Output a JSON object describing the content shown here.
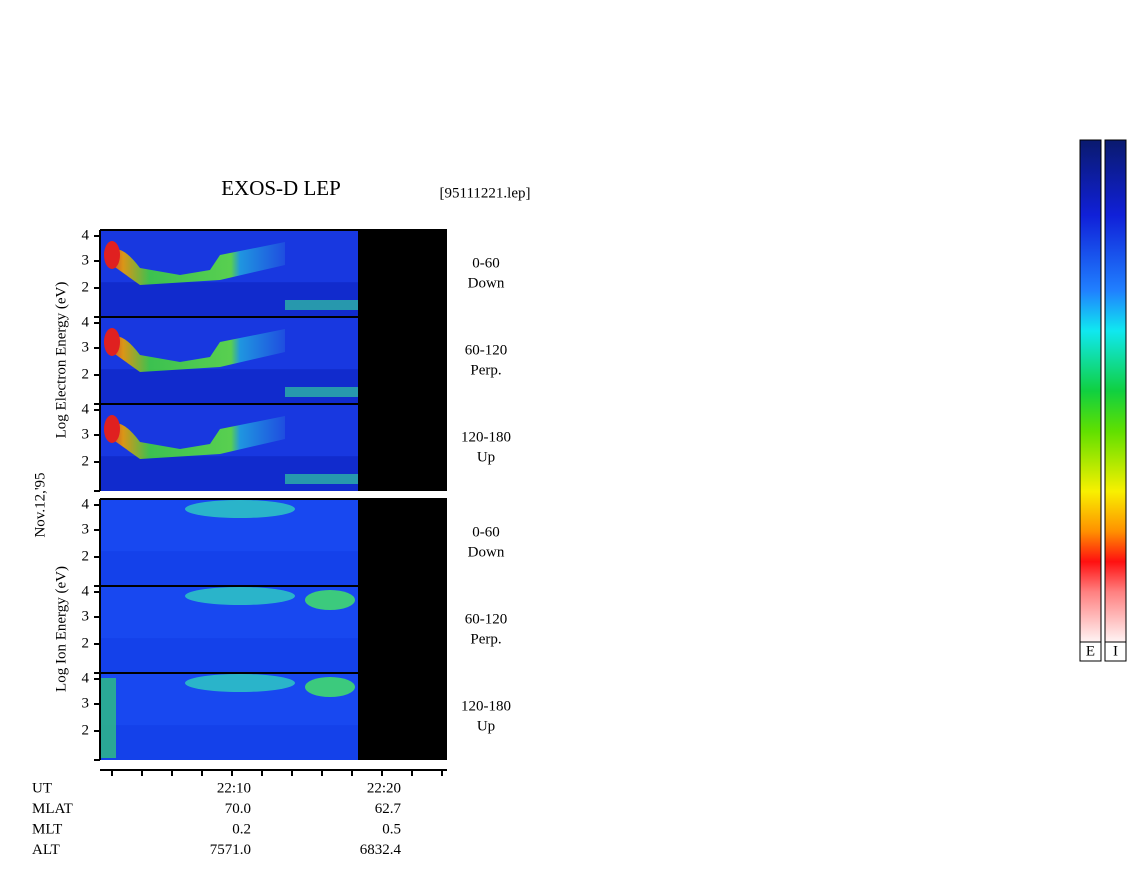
{
  "header": {
    "title": "EXOS-D LEP",
    "file": "[95111221.lep]"
  },
  "date": "Nov.12,'95",
  "yticks": [
    "2",
    "3",
    "4"
  ],
  "groups": [
    {
      "axis_label": "Log Electron Energy (eV)",
      "panels": [
        {
          "angle": "0-60",
          "direction": "Down"
        },
        {
          "angle": "60-120",
          "direction": "Perp."
        },
        {
          "angle": "120-180",
          "direction": "Up"
        }
      ]
    },
    {
      "axis_label": "Log Ion Energy (eV)",
      "panels": [
        {
          "angle": "0-60",
          "direction": "Down"
        },
        {
          "angle": "60-120",
          "direction": "Perp."
        },
        {
          "angle": "120-180",
          "direction": "Up"
        }
      ]
    }
  ],
  "ephemeris": {
    "rows": [
      {
        "label": "UT",
        "values": [
          "22:10",
          "22:20"
        ]
      },
      {
        "label": "MLAT",
        "values": [
          "70.0",
          "62.7"
        ]
      },
      {
        "label": "MLT",
        "values": [
          "0.2",
          "0.5"
        ]
      },
      {
        "label": "ALT",
        "values": [
          "7571.0",
          "6832.4"
        ]
      }
    ]
  },
  "colorbars": [
    "E",
    "I"
  ]
}
